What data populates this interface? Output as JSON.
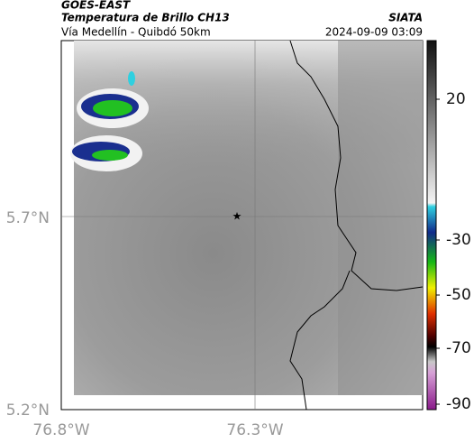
{
  "header": {
    "source": "GOES-EAST",
    "title": "Temperatura de Brillo CH13",
    "org": "SIATA",
    "subtitle": "Vía Medellín - Quibdó 50km",
    "datetime": "2024-09-09 03:09"
  },
  "axes": {
    "lat_labels": [
      "5.7°N",
      "5.2°N"
    ],
    "lon_labels": [
      "76.8°W",
      "76.3°W"
    ]
  },
  "colorbar": {
    "ticks": [
      "20",
      "-30",
      "-50",
      "-70",
      "-90"
    ]
  }
}
